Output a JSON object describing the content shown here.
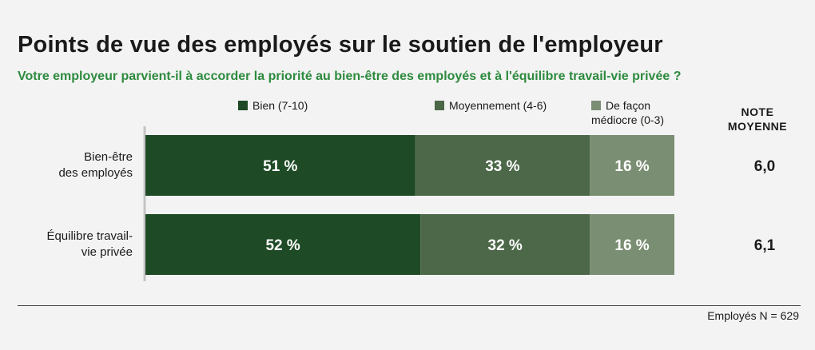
{
  "chart_data": {
    "type": "bar",
    "stacked": true,
    "orientation": "horizontal",
    "title": "Points de vue des employés sur le soutien de l'employeur",
    "subtitle": "Votre employeur parvient-il à accorder la priorité au bien-être des employés et à l'équilibre travail-vie privée ?",
    "categories": [
      [
        "Bien-être",
        "des employés"
      ],
      [
        "Équilibre travail-",
        "vie privée"
      ]
    ],
    "series": [
      {
        "name": "Bien (7-10)",
        "color": "#1e4a25",
        "values": [
          51,
          52
        ],
        "labels": [
          "51 %",
          "52 %"
        ]
      },
      {
        "name": "Moyennement (4-6)",
        "color": "#4c6848",
        "values": [
          33,
          32
        ],
        "labels": [
          "33 %",
          "32 %"
        ]
      },
      {
        "name": "De façon médiocre (0-3)",
        "legend_lines": [
          "De façon",
          "médiocre (0-3)"
        ],
        "color": "#7a8e73",
        "values": [
          16,
          16
        ],
        "labels": [
          "16 %",
          "16 %"
        ]
      }
    ],
    "note_header": [
      "NOTE",
      "MOYENNE"
    ],
    "note_values": [
      "6,0",
      "6,1"
    ],
    "xlim": [
      0,
      100
    ],
    "legend_position": "top",
    "footer": "Employés N = 629"
  }
}
